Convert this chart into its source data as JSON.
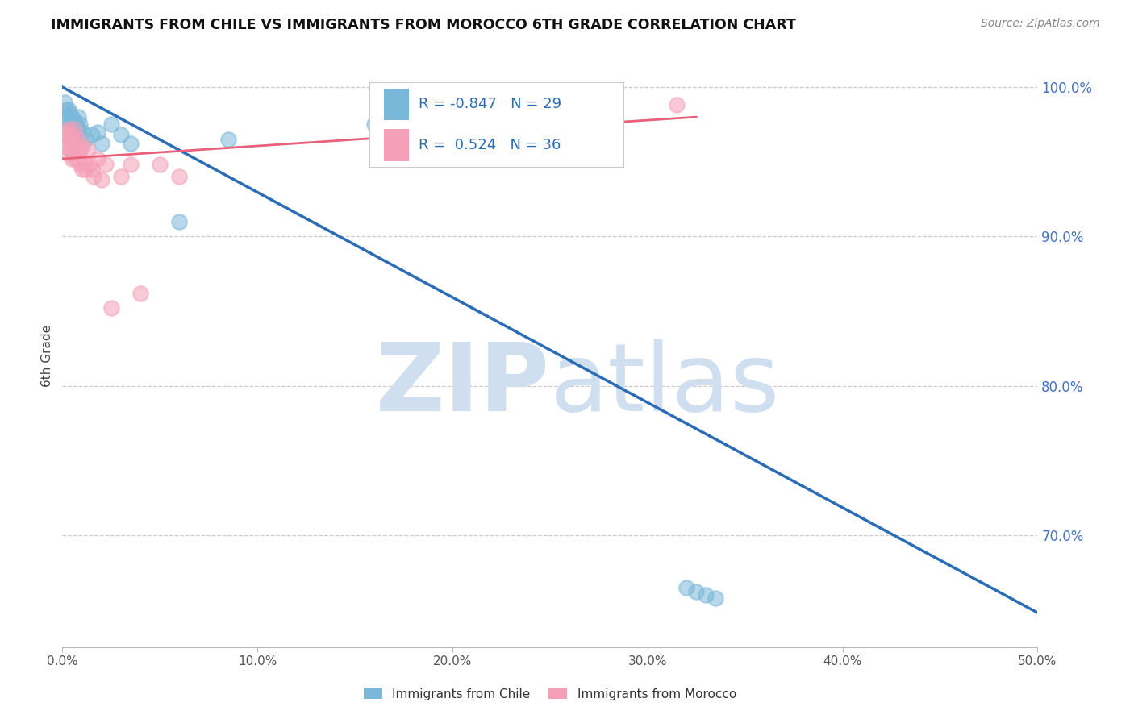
{
  "title": "IMMIGRANTS FROM CHILE VS IMMIGRANTS FROM MOROCCO 6TH GRADE CORRELATION CHART",
  "source": "Source: ZipAtlas.com",
  "ylabel": "6th Grade",
  "legend_label1": "Immigrants from Chile",
  "legend_label2": "Immigrants from Morocco",
  "r1": -0.847,
  "n1": 29,
  "r2": 0.524,
  "n2": 36,
  "color_chile": "#7ab8d9",
  "color_morocco": "#f4a0b8",
  "trendline_chile": "#2a6db5",
  "trendline_morocco": "#e8607a",
  "xlim": [
    0.0,
    0.5
  ],
  "ylim": [
    0.625,
    1.015
  ],
  "xticks": [
    0.0,
    0.1,
    0.2,
    0.3,
    0.4,
    0.5
  ],
  "yticks": [
    0.7,
    0.8,
    0.9,
    1.0
  ],
  "xtick_labels": [
    "0.0%",
    "10.0%",
    "20.0%",
    "30.0%",
    "40.0%",
    "50.0%"
  ],
  "ytick_labels": [
    "70.0%",
    "80.0%",
    "90.0%",
    "100.0%"
  ],
  "watermark_line1": "ZIP",
  "watermark_line2": "atlas",
  "watermark_color": "#d0dff0",
  "background_color": "#ffffff",
  "chile_x": [
    0.001,
    0.002,
    0.002,
    0.003,
    0.003,
    0.004,
    0.004,
    0.005,
    0.005,
    0.006,
    0.007,
    0.008,
    0.008,
    0.009,
    0.01,
    0.012,
    0.015,
    0.018,
    0.02,
    0.025,
    0.03,
    0.035,
    0.06,
    0.085,
    0.16,
    0.32,
    0.325,
    0.33,
    0.335
  ],
  "chile_y": [
    0.99,
    0.985,
    0.98,
    0.985,
    0.978,
    0.982,
    0.975,
    0.98,
    0.972,
    0.978,
    0.975,
    0.98,
    0.972,
    0.975,
    0.97,
    0.965,
    0.968,
    0.97,
    0.962,
    0.975,
    0.968,
    0.962,
    0.91,
    0.965,
    0.975,
    0.665,
    0.662,
    0.66,
    0.658
  ],
  "morocco_x": [
    0.001,
    0.001,
    0.002,
    0.002,
    0.003,
    0.003,
    0.004,
    0.004,
    0.005,
    0.005,
    0.006,
    0.006,
    0.007,
    0.007,
    0.008,
    0.008,
    0.009,
    0.009,
    0.01,
    0.01,
    0.011,
    0.012,
    0.013,
    0.014,
    0.015,
    0.016,
    0.018,
    0.02,
    0.022,
    0.025,
    0.03,
    0.035,
    0.04,
    0.05,
    0.06,
    0.315
  ],
  "morocco_y": [
    0.965,
    0.97,
    0.96,
    0.968,
    0.955,
    0.972,
    0.958,
    0.965,
    0.952,
    0.968,
    0.96,
    0.972,
    0.952,
    0.962,
    0.958,
    0.965,
    0.948,
    0.958,
    0.945,
    0.96,
    0.95,
    0.945,
    0.958,
    0.948,
    0.945,
    0.94,
    0.952,
    0.938,
    0.948,
    0.852,
    0.94,
    0.948,
    0.862,
    0.948,
    0.94,
    0.988
  ],
  "trendline_chile_x0": 0.0,
  "trendline_chile_y0": 1.0,
  "trendline_chile_x1": 0.5,
  "trendline_chile_y1": 0.648,
  "trendline_morocco_x0": 0.0,
  "trendline_morocco_x1": 0.325,
  "trendline_morocco_y0": 0.952,
  "trendline_morocco_y1": 0.98
}
